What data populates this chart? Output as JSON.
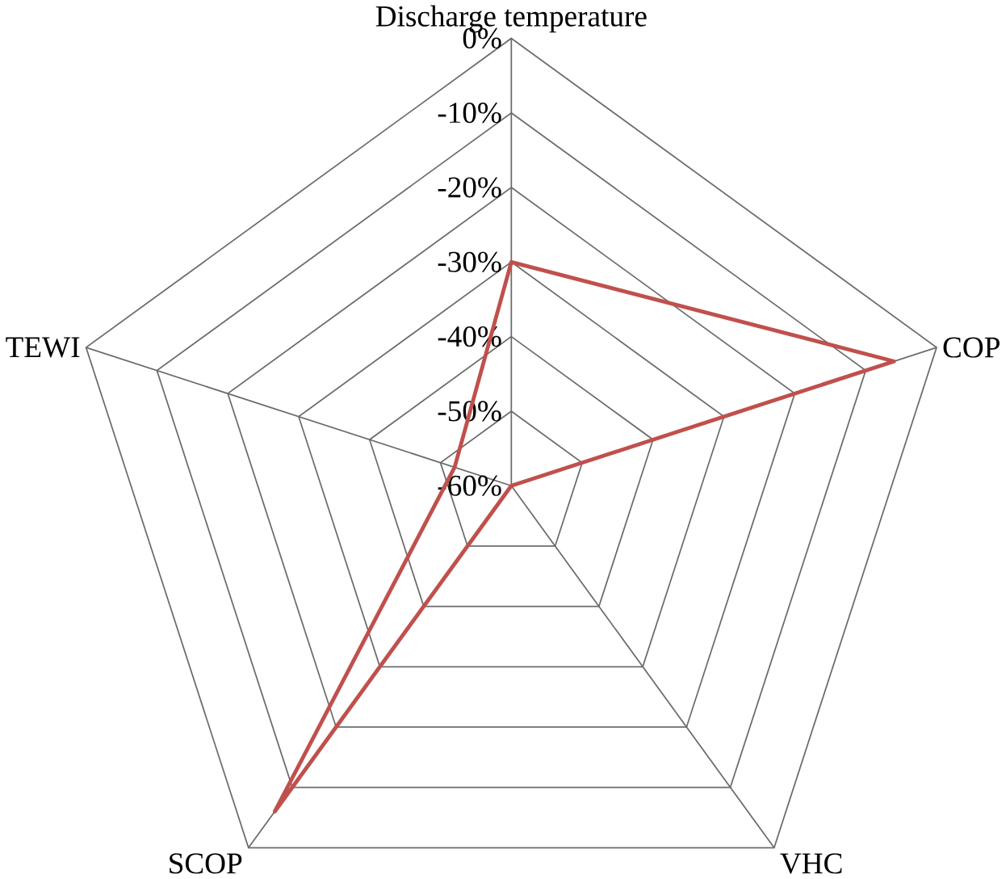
{
  "chart_data": {
    "type": "radar",
    "categories": [
      "Discharge temperature",
      "COP",
      "VHC",
      "SCOP",
      "TEWI"
    ],
    "series": [
      {
        "color": "#c0504d",
        "values": [
          -30,
          -6,
          -60,
          -6,
          -52
        ]
      }
    ],
    "ylim": [
      -60,
      0
    ],
    "yticks": [
      {
        "value": 0,
        "label": "0%"
      },
      {
        "value": -10,
        "label": "-10%"
      },
      {
        "value": -20,
        "label": "-20%"
      },
      {
        "value": -30,
        "label": "-30%"
      },
      {
        "value": -40,
        "label": "-40%"
      },
      {
        "value": -50,
        "label": "-50%"
      },
      {
        "value": -60,
        "label": "-60%"
      }
    ],
    "grid": true
  }
}
